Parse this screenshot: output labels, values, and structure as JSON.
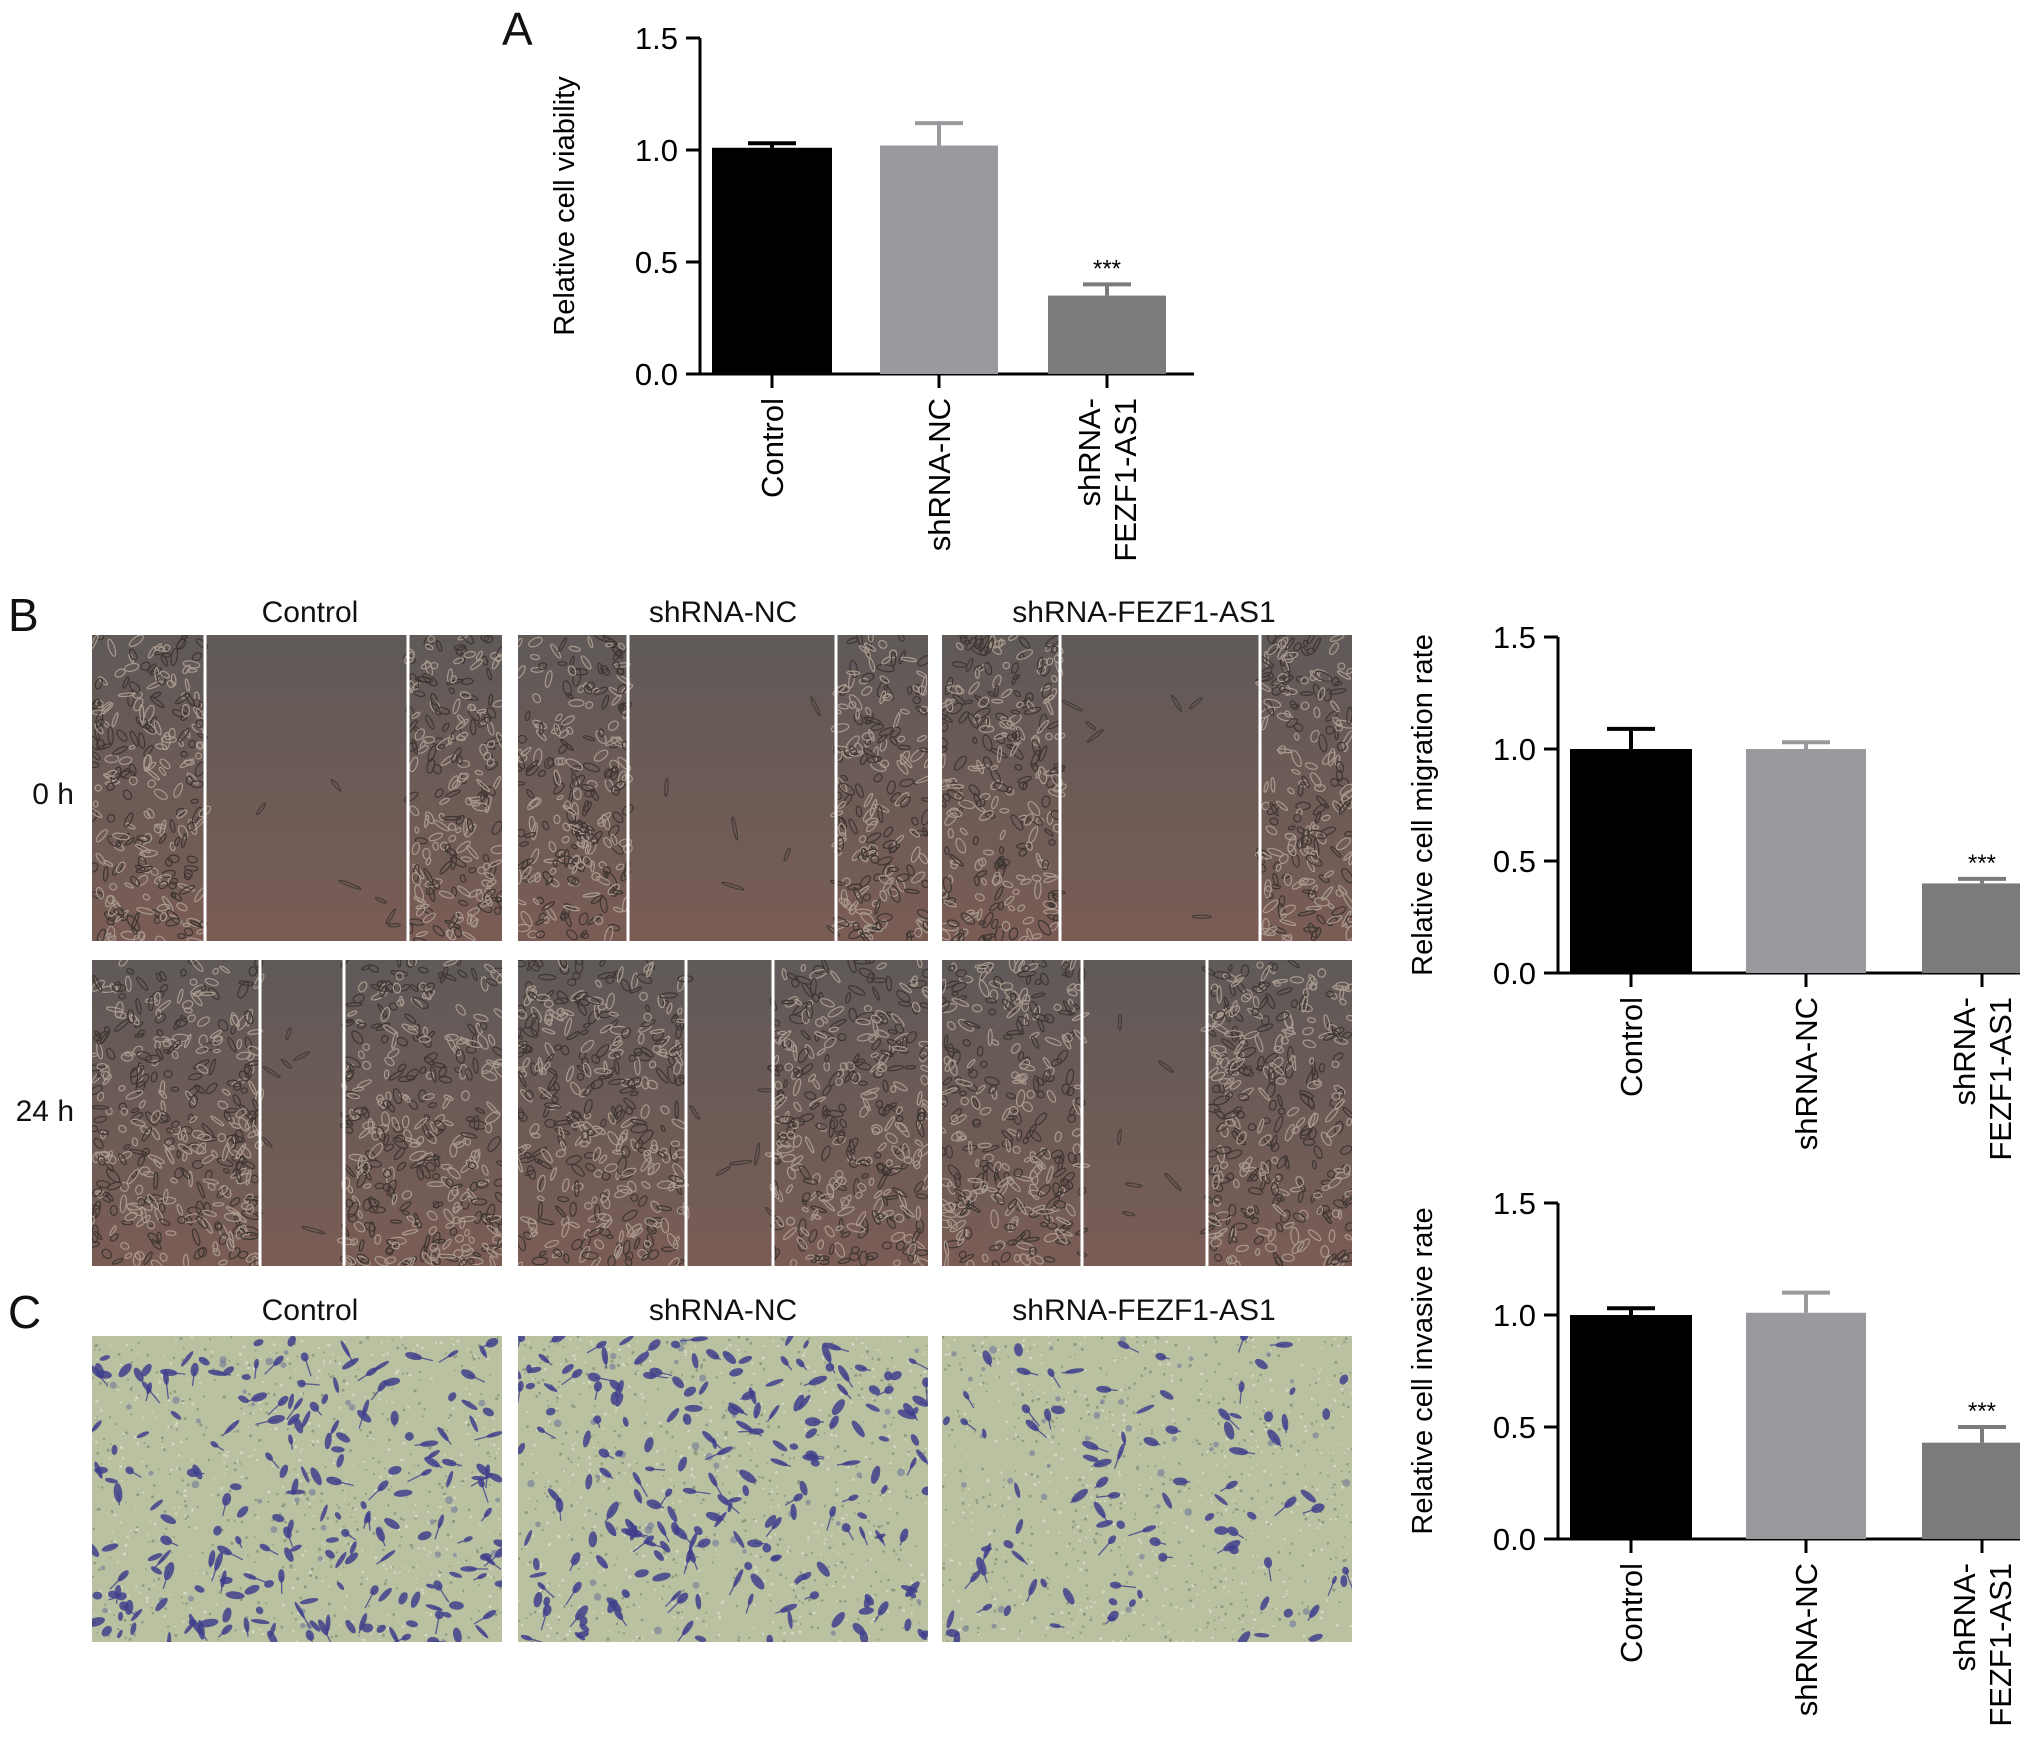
{
  "panels": {
    "A": {
      "letter": "A"
    },
    "B": {
      "letter": "B",
      "columns": [
        "Control",
        "shRNA-NC",
        "shRNA-FEZF1-AS1"
      ],
      "rows": [
        "0 h",
        "24 h"
      ]
    },
    "C": {
      "letter": "C",
      "columns": [
        "Control",
        "shRNA-NC",
        "shRNA-FEZF1-AS1"
      ]
    }
  },
  "colors": {
    "control": "#000000",
    "shrna_nc": "#9a9a9e",
    "shrna_fezf1": "#7b7b7d",
    "scratch_bg": "#6e5a55",
    "transwell_bg": "#b9c1a0",
    "transwell_cell": "#3f3f8c"
  },
  "chart_data": [
    {
      "id": "viability",
      "type": "bar",
      "categories": [
        [
          "Control"
        ],
        [
          "shRNA-NC"
        ],
        [
          "shRNA-",
          "FEZF1-AS1"
        ]
      ],
      "values": [
        1.01,
        1.02,
        0.35
      ],
      "errors": [
        0.02,
        0.1,
        0.05
      ],
      "annotations": [
        "",
        "",
        "***"
      ],
      "ylabel": "Relative cell viability",
      "ylim": [
        0,
        1.5
      ],
      "yticks": [
        "0.0",
        "0.5",
        "1.0",
        "1.5"
      ]
    },
    {
      "id": "migration",
      "type": "bar",
      "categories": [
        [
          "Control"
        ],
        [
          "shRNA-NC"
        ],
        [
          "shRNA-",
          "FEZF1-AS1"
        ]
      ],
      "values": [
        1.0,
        1.0,
        0.4
      ],
      "errors": [
        0.09,
        0.03,
        0.02
      ],
      "annotations": [
        "",
        "",
        "***"
      ],
      "ylabel": "Relative cell migration rate",
      "ylim": [
        0,
        1.5
      ],
      "yticks": [
        "0.0",
        "0.5",
        "1.0",
        "1.5"
      ]
    },
    {
      "id": "invasion",
      "type": "bar",
      "categories": [
        [
          "Control"
        ],
        [
          "shRNA-NC"
        ],
        [
          "shRNA-",
          "FEZF1-AS1"
        ]
      ],
      "values": [
        1.0,
        1.01,
        0.43
      ],
      "errors": [
        0.03,
        0.09,
        0.07
      ],
      "annotations": [
        "",
        "",
        "***"
      ],
      "ylabel": "Relative cell invasive rate",
      "ylim": [
        0,
        1.5
      ],
      "yticks": [
        "0.0",
        "0.5",
        "1.0",
        "1.5"
      ]
    }
  ]
}
